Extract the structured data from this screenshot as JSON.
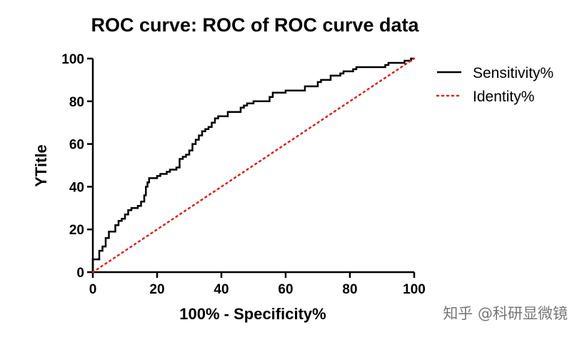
{
  "chart_data": {
    "type": "line",
    "title": "ROC curve: ROC of ROC curve data",
    "xlabel": "100% - Specificity%",
    "ylabel": "YTitle",
    "xlim": [
      0,
      100
    ],
    "ylim": [
      0,
      100
    ],
    "xticks": [
      0,
      20,
      40,
      60,
      80,
      100
    ],
    "yticks": [
      0,
      20,
      40,
      60,
      80,
      100
    ],
    "grid": false,
    "legend_position": "right",
    "series": [
      {
        "name": "Sensitivity%",
        "color": "#000000",
        "style": "solid",
        "points": [
          [
            0,
            0
          ],
          [
            0,
            6
          ],
          [
            2,
            6
          ],
          [
            2,
            10
          ],
          [
            3,
            10
          ],
          [
            3,
            12
          ],
          [
            4,
            12
          ],
          [
            4,
            16
          ],
          [
            5,
            16
          ],
          [
            5,
            19
          ],
          [
            7,
            19
          ],
          [
            7,
            22
          ],
          [
            8,
            22
          ],
          [
            8,
            24
          ],
          [
            9,
            24
          ],
          [
            9,
            25
          ],
          [
            10,
            25
          ],
          [
            10,
            27
          ],
          [
            11,
            27
          ],
          [
            11,
            29
          ],
          [
            12,
            29
          ],
          [
            12,
            30
          ],
          [
            14,
            30
          ],
          [
            14,
            31
          ],
          [
            15,
            31
          ],
          [
            15,
            33
          ],
          [
            16,
            33
          ],
          [
            16,
            36
          ],
          [
            16.5,
            36
          ],
          [
            16.5,
            40
          ],
          [
            17,
            40
          ],
          [
            17,
            42
          ],
          [
            17.5,
            42
          ],
          [
            17.5,
            44
          ],
          [
            20,
            44
          ],
          [
            20,
            45
          ],
          [
            21,
            45
          ],
          [
            21,
            46
          ],
          [
            23,
            46
          ],
          [
            23,
            47
          ],
          [
            24,
            47
          ],
          [
            24,
            48
          ],
          [
            26,
            48
          ],
          [
            26,
            49
          ],
          [
            27,
            49
          ],
          [
            27,
            53
          ],
          [
            28,
            53
          ],
          [
            28,
            54
          ],
          [
            29,
            54
          ],
          [
            29,
            55
          ],
          [
            30,
            55
          ],
          [
            30,
            57
          ],
          [
            31,
            57
          ],
          [
            31,
            60
          ],
          [
            32,
            60
          ],
          [
            32,
            62
          ],
          [
            33,
            62
          ],
          [
            33,
            64
          ],
          [
            34,
            64
          ],
          [
            34,
            66
          ],
          [
            35,
            66
          ],
          [
            35,
            67
          ],
          [
            36,
            67
          ],
          [
            36,
            68
          ],
          [
            37,
            68
          ],
          [
            37,
            70
          ],
          [
            38,
            70
          ],
          [
            38,
            72
          ],
          [
            39,
            72
          ],
          [
            39,
            73
          ],
          [
            42,
            73
          ],
          [
            42,
            75
          ],
          [
            46,
            75
          ],
          [
            46,
            77
          ],
          [
            47,
            77
          ],
          [
            47,
            78
          ],
          [
            48,
            78
          ],
          [
            48,
            79
          ],
          [
            50,
            79
          ],
          [
            50,
            80
          ],
          [
            55,
            80
          ],
          [
            55,
            82
          ],
          [
            56,
            82
          ],
          [
            56,
            84
          ],
          [
            60,
            84
          ],
          [
            60,
            85
          ],
          [
            66,
            85
          ],
          [
            66,
            87
          ],
          [
            70,
            87
          ],
          [
            70,
            89
          ],
          [
            71,
            89
          ],
          [
            71,
            90
          ],
          [
            74,
            90
          ],
          [
            74,
            92
          ],
          [
            77,
            92
          ],
          [
            77,
            93
          ],
          [
            78,
            93
          ],
          [
            78,
            94
          ],
          [
            81,
            94
          ],
          [
            81,
            95
          ],
          [
            82,
            95
          ],
          [
            82,
            96
          ],
          [
            91,
            96
          ],
          [
            91,
            97
          ],
          [
            92,
            97
          ],
          [
            92,
            98
          ],
          [
            97,
            98
          ],
          [
            97,
            99
          ],
          [
            99,
            99
          ],
          [
            99,
            100
          ],
          [
            100,
            100
          ]
        ]
      },
      {
        "name": "Identity%",
        "color": "#e0211c",
        "style": "dotted",
        "points": [
          [
            0,
            0
          ],
          [
            100,
            100
          ]
        ]
      }
    ]
  },
  "watermark": "知乎 @科研显微镜"
}
